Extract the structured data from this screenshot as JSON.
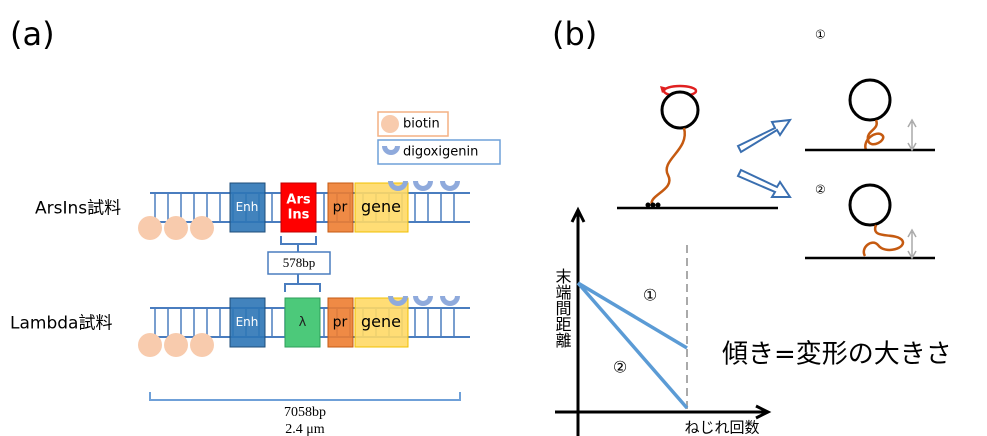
{
  "panel_a": {
    "label": "(a)",
    "legend": {
      "biotin": "biotin",
      "digoxigenin": "digoxigenin"
    },
    "samples": [
      {
        "name": "ArsIns試料",
        "enhancer": "Enh",
        "insert": [
          "Ars",
          "Ins"
        ],
        "promoter": "pr",
        "gene": "gene"
      },
      {
        "name": "Lambda試料",
        "enhancer": "Enh",
        "insert": [
          "λ"
        ],
        "promoter": "pr",
        "gene": "gene"
      }
    ],
    "insert_length": "578bp",
    "total_length": "7058bp",
    "total_distance": "2.4 μm"
  },
  "panel_b": {
    "label": "(b)",
    "outcomes": [
      "①",
      "②"
    ],
    "y_axis_label": "末端間距離",
    "x_axis_label": "ねじれ回数",
    "line_labels": [
      "①",
      "②"
    ],
    "annotation": "傾き=変形の大きさ"
  }
}
